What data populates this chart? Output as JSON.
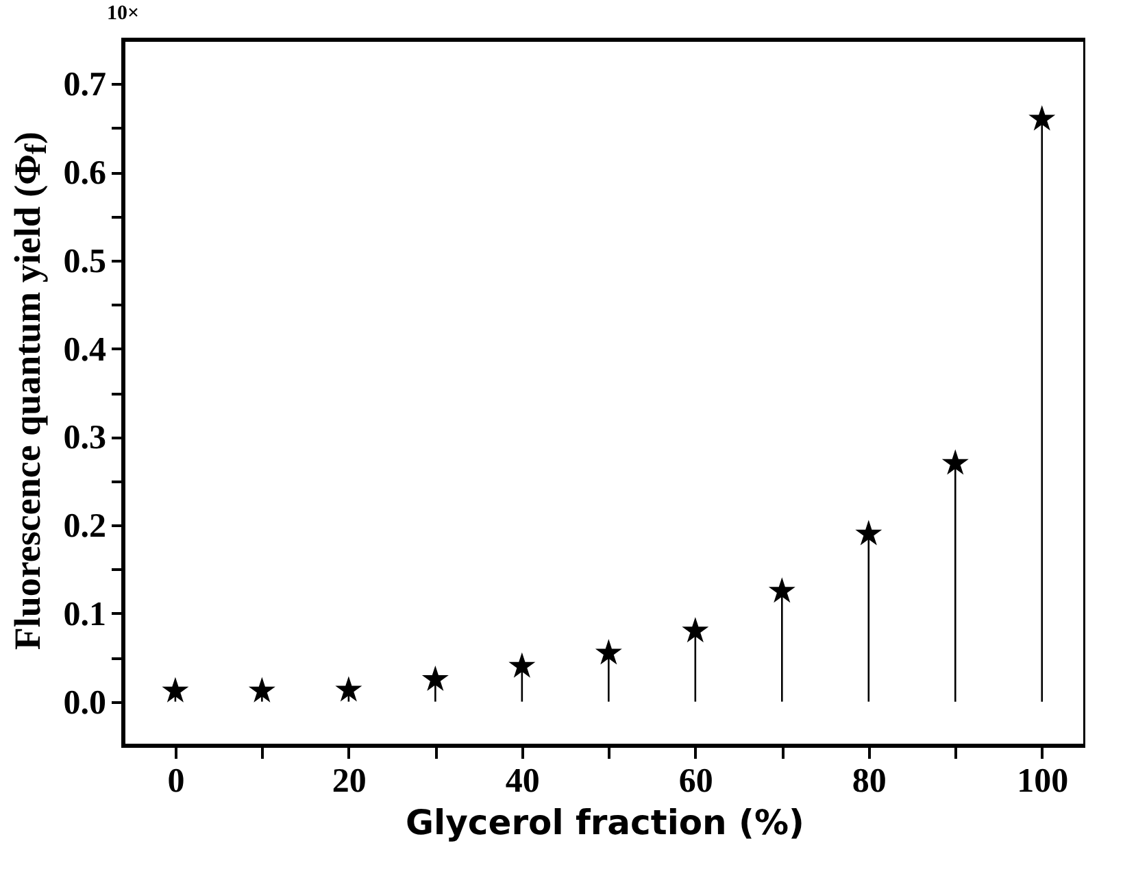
{
  "chart_data": {
    "type": "lollipop",
    "xlabel": "Glycerol fraction (%)",
    "ylabel": "Fluorescence quantum yield (Φ$_{f}$)",
    "annotations": [
      "10×"
    ],
    "x": [
      0,
      10,
      20,
      30,
      40,
      50,
      60,
      70,
      80,
      90,
      100
    ],
    "series": [
      {
        "color": "#000000",
        "values": [
          0.012,
          0.012,
          0.013,
          0.025,
          0.04,
          0.055,
          0.08,
          0.125,
          0.19,
          0.27,
          0.66
        ]
      }
    ],
    "xlim": [
      -6,
      105
    ],
    "ylim": [
      -0.05,
      0.75
    ],
    "xticks": [
      0,
      {
        "value": 10,
        "label": null
      },
      20,
      {
        "value": 30,
        "label": null
      },
      40,
      {
        "value": 50,
        "label": null
      },
      60,
      {
        "value": 70,
        "label": null
      },
      80,
      {
        "value": 90,
        "label": null
      },
      100
    ],
    "yticks": [
      "0.0",
      {
        "value": 0.05,
        "label": null
      },
      {
        "value": 0.1,
        "label": "0.1"
      },
      {
        "value": 0.15,
        "label": null
      },
      {
        "value": 0.2,
        "label": "0.2"
      },
      {
        "value": 0.25,
        "label": null
      },
      {
        "value": 0.3,
        "label": "0.3"
      },
      {
        "value": 0.35,
        "label": null
      },
      {
        "value": 0.4,
        "label": "0.4"
      },
      {
        "value": 0.45,
        "label": null
      },
      {
        "value": 0.5,
        "label": "0.5"
      },
      {
        "value": 0.55,
        "label": null
      },
      {
        "value": 0.6,
        "label": "0.6"
      },
      {
        "value": 0.65,
        "label": null
      },
      {
        "value": 0.7,
        "label": "0.7"
      }
    ],
    "marker": "star"
  }
}
